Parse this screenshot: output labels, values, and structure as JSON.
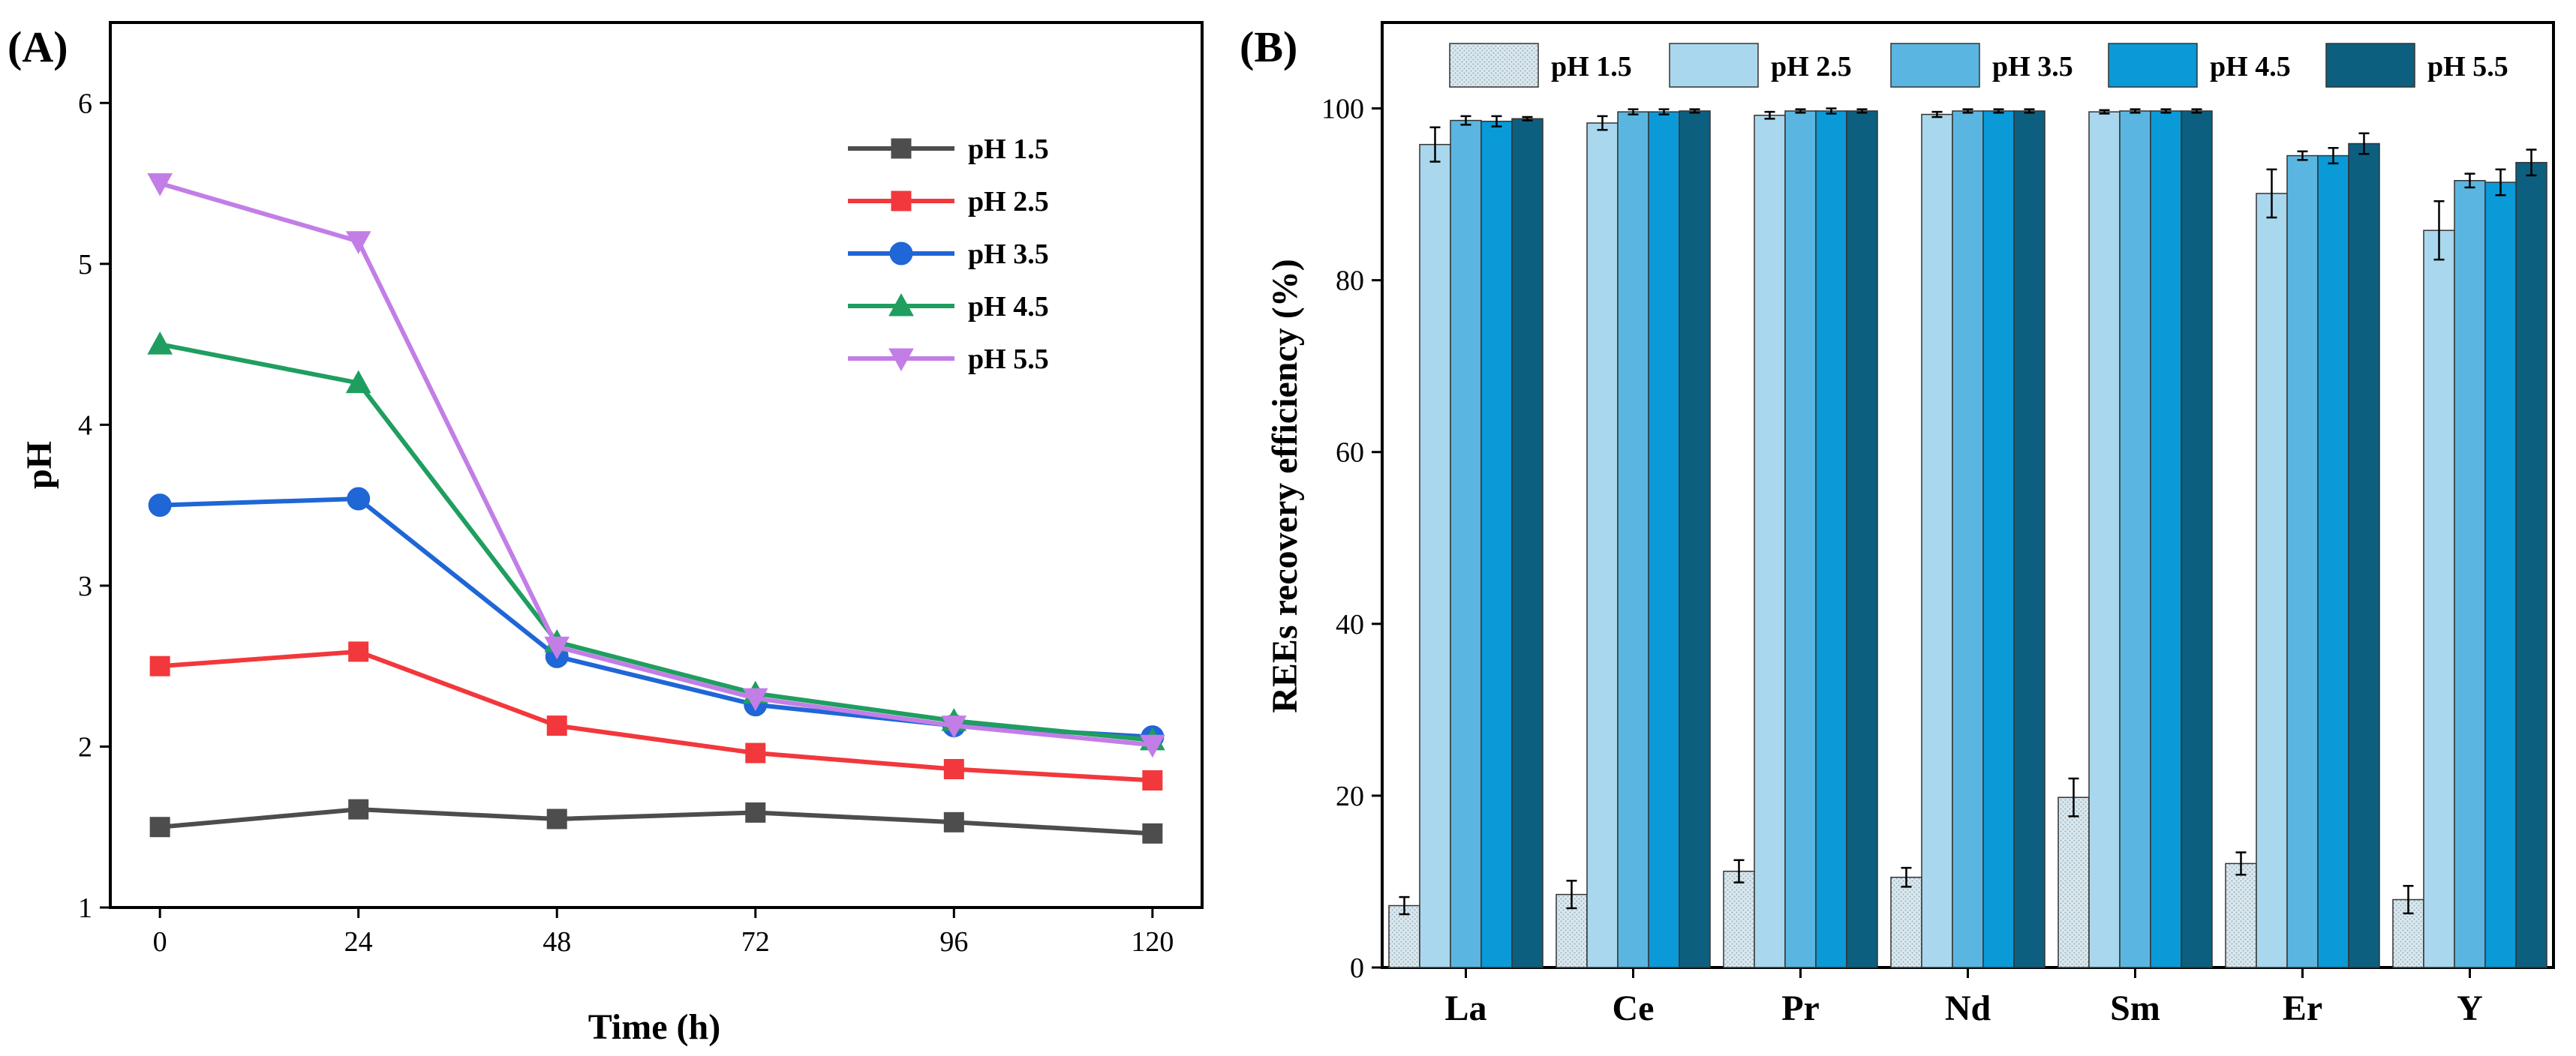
{
  "chart_data": [
    {
      "panel_label": "(A)",
      "type": "line",
      "xlabel": "Time (h)",
      "ylabel": "pH",
      "x": [
        0,
        24,
        48,
        72,
        96,
        120
      ],
      "xticks": [
        "0",
        "24",
        "48",
        "72",
        "96",
        "120"
      ],
      "yticks": [
        "1",
        "2",
        "3",
        "4",
        "5",
        "6"
      ],
      "xlim": [
        -6,
        126
      ],
      "ylim": [
        1,
        6.5
      ],
      "grid": false,
      "legend_position": "right",
      "series": [
        {
          "name": "pH 1.5",
          "marker": "square",
          "color": "#4d4d4d",
          "values": [
            1.5,
            1.61,
            1.55,
            1.59,
            1.53,
            1.46
          ]
        },
        {
          "name": "pH 2.5",
          "marker": "square",
          "color": "#f2383c",
          "values": [
            2.5,
            2.59,
            2.13,
            1.96,
            1.86,
            1.79
          ]
        },
        {
          "name": "pH 3.5",
          "marker": "circle",
          "color": "#1f66d6",
          "values": [
            3.5,
            3.54,
            2.56,
            2.26,
            2.13,
            2.06
          ]
        },
        {
          "name": "pH 4.5",
          "marker": "triangle-up",
          "color": "#1f9e60",
          "values": [
            4.5,
            4.26,
            2.65,
            2.33,
            2.16,
            2.04
          ]
        },
        {
          "name": "pH 5.5",
          "marker": "triangle-down",
          "color": "#c27ee6",
          "values": [
            5.5,
            5.14,
            2.62,
            2.3,
            2.13,
            2.01
          ]
        }
      ]
    },
    {
      "panel_label": "(B)",
      "type": "bar",
      "xlabel": "",
      "ylabel": "REEs recovery efficiency (%)",
      "categories": [
        "La",
        "Ce",
        "Pr",
        "Nd",
        "Sm",
        "Er",
        "Y"
      ],
      "yticks": [
        "0",
        "20",
        "40",
        "60",
        "80",
        "100"
      ],
      "ylim": [
        0,
        110
      ],
      "grid": false,
      "legend_position": "top",
      "series": [
        {
          "name": "pH 1.5",
          "color": "#d6e8f0",
          "values": [
            7.2,
            8.5,
            11.2,
            10.5,
            19.8,
            12.1,
            7.9
          ],
          "errors": [
            1.0,
            1.6,
            1.3,
            1.1,
            2.2,
            1.3,
            1.6
          ]
        },
        {
          "name": "pH 2.5",
          "color": "#a9d7ee",
          "values": [
            95.8,
            98.3,
            99.2,
            99.3,
            99.6,
            90.1,
            85.8
          ],
          "errors": [
            2.0,
            0.8,
            0.4,
            0.3,
            0.2,
            2.8,
            3.4
          ]
        },
        {
          "name": "pH 3.5",
          "color": "#5ab6e0",
          "values": [
            98.6,
            99.6,
            99.7,
            99.7,
            99.7,
            94.5,
            91.6
          ],
          "errors": [
            0.5,
            0.3,
            0.2,
            0.2,
            0.2,
            0.5,
            0.8
          ]
        },
        {
          "name": "pH 4.5",
          "color": "#0a9ad8",
          "values": [
            98.5,
            99.6,
            99.7,
            99.7,
            99.7,
            94.5,
            91.4
          ],
          "errors": [
            0.6,
            0.3,
            0.3,
            0.2,
            0.2,
            0.9,
            1.5
          ]
        },
        {
          "name": "pH 5.5",
          "color": "#0d5f80",
          "values": [
            98.8,
            99.7,
            99.7,
            99.7,
            99.7,
            95.9,
            93.7
          ],
          "errors": [
            0.2,
            0.2,
            0.2,
            0.2,
            0.2,
            1.2,
            1.5
          ]
        }
      ]
    }
  ]
}
